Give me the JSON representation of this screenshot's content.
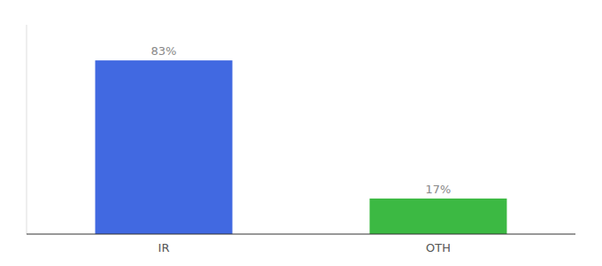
{
  "chart_data": {
    "type": "bar",
    "categories": [
      "IR",
      "OTH"
    ],
    "values": [
      83,
      17
    ],
    "colors": [
      "#4169E1",
      "#3CB943"
    ],
    "value_labels": [
      "83%",
      "17%"
    ],
    "data_labels": true,
    "tick_labels": "x",
    "ylim": [
      0,
      100
    ]
  }
}
